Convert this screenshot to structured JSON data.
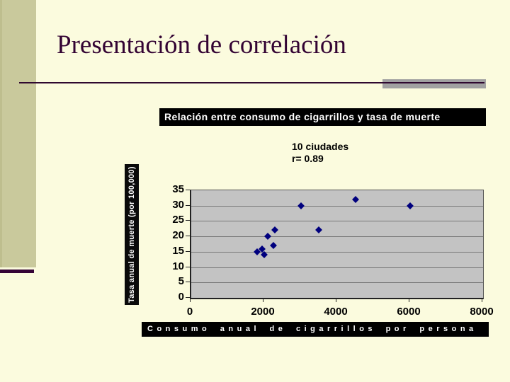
{
  "slide": {
    "title": "Presentación de correlación"
  },
  "colors": {
    "background": "#FBFBDE",
    "sidebar": "#C9C99C",
    "title_text": "#330333",
    "divider_line": "#2F082F",
    "divider_accent": "#A1A1A1",
    "banner_bg": "#000000",
    "banner_text": "#FFFFFF",
    "plot_bg": "#C3C3C3",
    "marker": "#00007E"
  },
  "chart_data": {
    "type": "scatter",
    "title": "Relación entre consumo de cigarrillos y tasa de muerte",
    "annotation": [
      "10 ciudades",
      "r= 0.89"
    ],
    "xlabel": "Consumo anual de cigarrillos por persona",
    "ylabel": "Tasa anual de muerte (por 100,000)",
    "xlim": [
      0,
      8000
    ],
    "ylim": [
      0,
      35
    ],
    "x_ticks": [
      0,
      2000,
      4000,
      6000,
      8000
    ],
    "y_ticks": [
      0,
      5,
      10,
      15,
      20,
      25,
      30,
      35
    ],
    "grid": true,
    "legend": false,
    "marker": "diamond",
    "points": [
      [
        1800,
        15
      ],
      [
        1950,
        16
      ],
      [
        2000,
        14
      ],
      [
        2100,
        20
      ],
      [
        2250,
        17
      ],
      [
        2300,
        22
      ],
      [
        3000,
        30
      ],
      [
        3500,
        22
      ],
      [
        4500,
        32
      ],
      [
        6000,
        30
      ]
    ]
  }
}
